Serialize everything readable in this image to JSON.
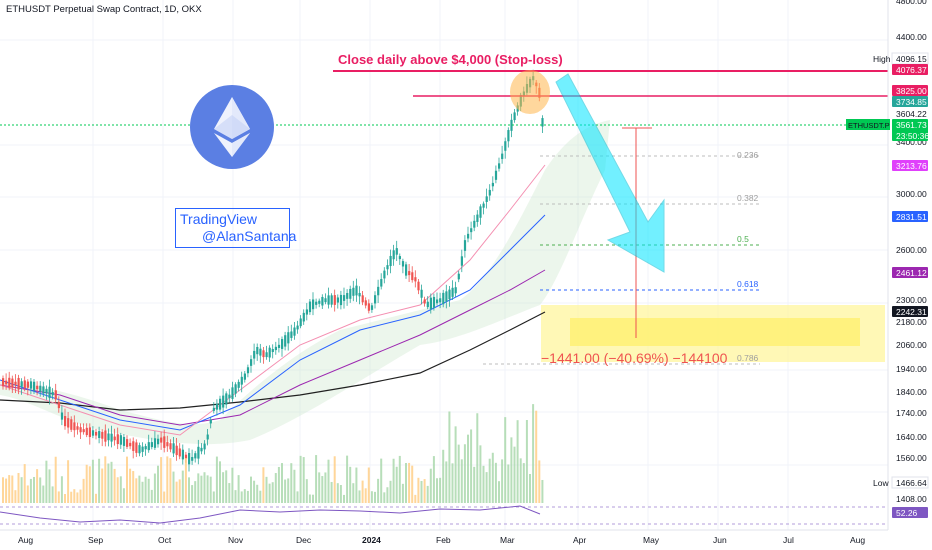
{
  "header": {
    "title": "ETHUSDT Perpetual Swap Contract, 1D, OKX"
  },
  "watermark": {
    "line1": "TradingView",
    "line2": "@AlanSantana"
  },
  "annotations": {
    "stop_loss": "Close daily above $4,000 (Stop-loss)",
    "measure": "−1441.00 (−40.69%) −144100"
  },
  "price_axis": {
    "ticks": [
      "4800.00",
      "4400.00",
      "3400.00",
      "3000.00",
      "2600.00",
      "2300.00",
      "2180.00",
      "2060.00",
      "1940.00",
      "1840.00",
      "1740.00",
      "1640.00",
      "1560.00",
      "1408.00"
    ],
    "badges": [
      {
        "label": "High",
        "value": "4096.15",
        "kind": "hl"
      },
      {
        "value": "4076.37",
        "color": "#e91e63"
      },
      {
        "value": "3825.00",
        "color": "#e91e63"
      },
      {
        "value": "3734.85",
        "color": "#26a69a"
      },
      {
        "value": "3604.22",
        "kind": "plain"
      },
      {
        "label": "ETHUSDT.P",
        "value": "3561.73",
        "sub": "23:50:36",
        "color": "#00c853"
      },
      {
        "value": "3213.76",
        "color": "#e040fb"
      },
      {
        "value": "2831.51",
        "color": "#2962ff"
      },
      {
        "value": "2461.12",
        "color": "#9c27b0"
      },
      {
        "value": "2242.31",
        "color": "#131722"
      },
      {
        "label": "Low",
        "value": "1466.64",
        "kind": "hl"
      },
      {
        "value": "52.26",
        "color": "#7e57c2"
      }
    ]
  },
  "time_axis": {
    "labels": [
      "Aug",
      "Sep",
      "Oct",
      "Nov",
      "Dec",
      "2024",
      "Feb",
      "Mar",
      "Apr",
      "May",
      "Jun",
      "Jul",
      "Aug"
    ]
  },
  "fib_levels": [
    "0.236",
    "0.382",
    "0.5",
    "0.618",
    "0.786"
  ],
  "colors": {
    "up": "#26a69a",
    "down": "#ef5350",
    "stop": "#e91e63",
    "arrow": "#00e5ff",
    "target_zone": "#ffeb3b"
  }
}
